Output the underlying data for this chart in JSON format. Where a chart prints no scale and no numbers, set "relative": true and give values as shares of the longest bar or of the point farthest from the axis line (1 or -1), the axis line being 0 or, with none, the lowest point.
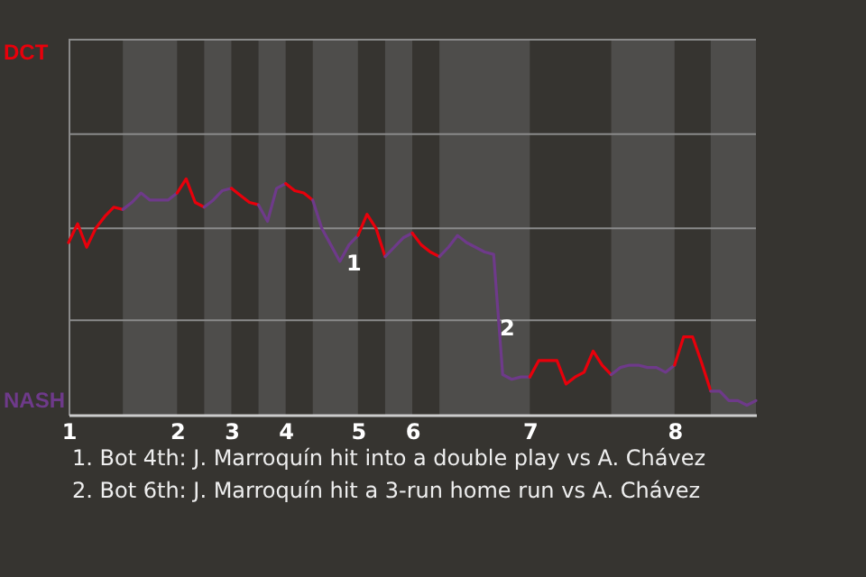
{
  "chart_data": {
    "type": "line",
    "relative": true,
    "ref_lines": [
      {
        "axis": "y",
        "value": 0.4,
        "color": "#8a8a8a"
      },
      {
        "axis": "y",
        "value": 0.79,
        "color": "#8a8a8a"
      },
      {
        "axis": "y",
        "value": 1.19,
        "color": "#8a8a8a"
      },
      {
        "axis": "y",
        "value": 1.59,
        "color": "#8a8a8a"
      }
    ],
    "categories": [
      "1",
      null,
      null,
      null,
      null,
      null,
      null,
      null,
      null,
      null,
      null,
      null,
      "2",
      null,
      null,
      null,
      null,
      null,
      "3",
      null,
      null,
      null,
      null,
      null,
      "4",
      null,
      null,
      null,
      null,
      null,
      null,
      null,
      "5",
      null,
      null,
      null,
      null,
      null,
      "6",
      null,
      null,
      null,
      null,
      null,
      null,
      null,
      null,
      null,
      null,
      null,
      null,
      "7",
      null,
      null,
      null,
      null,
      null,
      null,
      null,
      null,
      null,
      null,
      null,
      null,
      null,
      null,
      null,
      "8",
      null,
      null,
      null,
      null,
      null,
      null,
      null,
      null,
      null
    ],
    "series": [
      {
        "name": "DCT",
        "color": "#e8000b",
        "values": [
          0.73,
          0.81,
          0.71,
          0.79,
          0.84,
          0.88,
          0.87,
          null,
          null,
          null,
          null,
          null,
          null,
          null,
          null,
          null,
          null,
          null,
          null,
          null,
          null,
          null,
          null,
          null,
          null,
          null,
          null,
          null,
          null,
          null,
          null,
          null,
          null,
          null,
          null,
          null,
          null,
          null,
          null,
          null,
          null,
          null,
          null,
          null,
          null,
          null,
          null,
          null,
          null,
          null,
          null,
          null,
          null,
          null,
          null,
          null,
          null,
          null,
          null,
          null,
          null,
          null,
          null,
          null,
          null,
          null,
          null,
          null,
          null,
          null,
          null,
          null,
          null,
          null,
          null,
          null,
          null
        ]
      },
      {
        "name": "NASH",
        "color": "#6e3a8a",
        "values": [
          null,
          null,
          null,
          null,
          null,
          null,
          0.87,
          0.9,
          0.94,
          0.91,
          0.91,
          0.91,
          0.94,
          null,
          null,
          null,
          null,
          null,
          null,
          null,
          null,
          null,
          null,
          null,
          null,
          null,
          null,
          null,
          null,
          null,
          null,
          null,
          null,
          null,
          null,
          null,
          null,
          null,
          null,
          null,
          null,
          null,
          null,
          null,
          null,
          null,
          null,
          null,
          null,
          null,
          null,
          null,
          null,
          null,
          null,
          null,
          null,
          null,
          null,
          null,
          null,
          null,
          null,
          null,
          null,
          null,
          null,
          null,
          null,
          null,
          null,
          null,
          null,
          null,
          null,
          null,
          null
        ]
      },
      {
        "color": "#e8000b",
        "values": [
          null,
          null,
          null,
          null,
          null,
          null,
          null,
          null,
          null,
          null,
          null,
          null,
          0.94,
          1,
          0.9,
          0.88,
          null,
          null,
          null,
          null,
          null,
          null,
          null,
          null,
          null,
          null,
          null,
          null,
          null,
          null,
          null,
          null,
          null,
          null,
          null,
          null,
          null,
          null,
          null,
          null,
          null,
          null,
          null,
          null,
          null,
          null,
          null,
          null,
          null,
          null,
          null,
          null,
          null,
          null,
          null,
          null,
          null,
          null,
          null,
          null,
          null,
          null,
          null,
          null,
          null,
          null,
          null,
          null,
          null,
          null,
          null,
          null,
          null,
          null,
          null,
          null,
          null
        ]
      },
      {
        "color": "#6e3a8a",
        "values": [
          null,
          null,
          null,
          null,
          null,
          null,
          null,
          null,
          null,
          null,
          null,
          null,
          null,
          null,
          null,
          0.88,
          0.91,
          0.95,
          0.96,
          null,
          null,
          null,
          null,
          null,
          null,
          null,
          null,
          null,
          null,
          null,
          null,
          null,
          null,
          null,
          null,
          null,
          null,
          null,
          null,
          null,
          null,
          null,
          null,
          null,
          null,
          null,
          null,
          null,
          null,
          null,
          null,
          null,
          null,
          null,
          null,
          null,
          null,
          null,
          null,
          null,
          null,
          null,
          null,
          null,
          null,
          null,
          null,
          null,
          null,
          null,
          null,
          null,
          null,
          null,
          null,
          null,
          null
        ]
      },
      {
        "color": "#e8000b",
        "values": [
          null,
          null,
          null,
          null,
          null,
          null,
          null,
          null,
          null,
          null,
          null,
          null,
          null,
          null,
          null,
          null,
          null,
          null,
          0.96,
          0.93,
          0.9,
          0.89,
          null,
          null,
          null,
          null,
          null,
          null,
          null,
          null,
          null,
          null,
          null,
          null,
          null,
          null,
          null,
          null,
          null,
          null,
          null,
          null,
          null,
          null,
          null,
          null,
          null,
          null,
          null,
          null,
          null,
          null,
          null,
          null,
          null,
          null,
          null,
          null,
          null,
          null,
          null,
          null,
          null,
          null,
          null,
          null,
          null,
          null,
          null,
          null,
          null,
          null,
          null,
          null,
          null,
          null,
          null
        ]
      },
      {
        "color": "#6e3a8a",
        "values": [
          null,
          null,
          null,
          null,
          null,
          null,
          null,
          null,
          null,
          null,
          null,
          null,
          null,
          null,
          null,
          null,
          null,
          null,
          null,
          null,
          null,
          0.89,
          0.82,
          0.96,
          0.98,
          null,
          null,
          null,
          null,
          null,
          null,
          null,
          null,
          null,
          null,
          null,
          null,
          null,
          null,
          null,
          null,
          null,
          null,
          null,
          null,
          null,
          null,
          null,
          null,
          null,
          null,
          null,
          null,
          null,
          null,
          null,
          null,
          null,
          null,
          null,
          null,
          null,
          null,
          null,
          null,
          null,
          null,
          null,
          null,
          null,
          null,
          null,
          null,
          null,
          null,
          null,
          null
        ]
      },
      {
        "color": "#e8000b",
        "values": [
          null,
          null,
          null,
          null,
          null,
          null,
          null,
          null,
          null,
          null,
          null,
          null,
          null,
          null,
          null,
          null,
          null,
          null,
          null,
          null,
          null,
          null,
          null,
          null,
          0.98,
          0.95,
          0.94,
          0.91,
          null,
          null,
          null,
          null,
          null,
          null,
          null,
          null,
          null,
          null,
          null,
          null,
          null,
          null,
          null,
          null,
          null,
          null,
          null,
          null,
          null,
          null,
          null,
          null,
          null,
          null,
          null,
          null,
          null,
          null,
          null,
          null,
          null,
          null,
          null,
          null,
          null,
          null,
          null,
          null,
          null,
          null,
          null,
          null,
          null,
          null,
          null,
          null,
          null
        ]
      },
      {
        "color": "#6e3a8a",
        "values": [
          null,
          null,
          null,
          null,
          null,
          null,
          null,
          null,
          null,
          null,
          null,
          null,
          null,
          null,
          null,
          null,
          null,
          null,
          null,
          null,
          null,
          null,
          null,
          null,
          null,
          null,
          null,
          0.91,
          0.79,
          0.72,
          0.65,
          0.72,
          0.76,
          null,
          null,
          null,
          null,
          null,
          null,
          null,
          null,
          null,
          null,
          null,
          null,
          null,
          null,
          null,
          null,
          null,
          null,
          null,
          null,
          null,
          null,
          null,
          null,
          null,
          null,
          null,
          null,
          null,
          null,
          null,
          null,
          null,
          null,
          null,
          null,
          null,
          null,
          null,
          null,
          null,
          null,
          null,
          null
        ]
      },
      {
        "color": "#e8000b",
        "values": [
          null,
          null,
          null,
          null,
          null,
          null,
          null,
          null,
          null,
          null,
          null,
          null,
          null,
          null,
          null,
          null,
          null,
          null,
          null,
          null,
          null,
          null,
          null,
          null,
          null,
          null,
          null,
          null,
          null,
          null,
          null,
          null,
          0.76,
          0.85,
          0.79,
          0.67,
          null,
          null,
          null,
          null,
          null,
          null,
          null,
          null,
          null,
          null,
          null,
          null,
          null,
          null,
          null,
          null,
          null,
          null,
          null,
          null,
          null,
          null,
          null,
          null,
          null,
          null,
          null,
          null,
          null,
          null,
          null,
          null,
          null,
          null,
          null,
          null,
          null,
          null,
          null,
          null,
          null
        ]
      },
      {
        "color": "#6e3a8a",
        "values": [
          null,
          null,
          null,
          null,
          null,
          null,
          null,
          null,
          null,
          null,
          null,
          null,
          null,
          null,
          null,
          null,
          null,
          null,
          null,
          null,
          null,
          null,
          null,
          null,
          null,
          null,
          null,
          null,
          null,
          null,
          null,
          null,
          null,
          null,
          null,
          0.67,
          0.71,
          0.75,
          0.77,
          null,
          null,
          null,
          null,
          null,
          null,
          null,
          null,
          null,
          null,
          null,
          null,
          null,
          null,
          null,
          null,
          null,
          null,
          null,
          null,
          null,
          null,
          null,
          null,
          null,
          null,
          null,
          null,
          null,
          null,
          null,
          null,
          null,
          null,
          null,
          null,
          null,
          null
        ]
      },
      {
        "color": "#e8000b",
        "values": [
          null,
          null,
          null,
          null,
          null,
          null,
          null,
          null,
          null,
          null,
          null,
          null,
          null,
          null,
          null,
          null,
          null,
          null,
          null,
          null,
          null,
          null,
          null,
          null,
          null,
          null,
          null,
          null,
          null,
          null,
          null,
          null,
          null,
          null,
          null,
          null,
          null,
          null,
          0.77,
          0.72,
          0.69,
          0.67,
          null,
          null,
          null,
          null,
          null,
          null,
          null,
          null,
          null,
          null,
          null,
          null,
          null,
          null,
          null,
          null,
          null,
          null,
          null,
          null,
          null,
          null,
          null,
          null,
          null,
          null,
          null,
          null,
          null,
          null,
          null,
          null,
          null,
          null,
          null
        ]
      },
      {
        "color": "#6e3a8a",
        "values": [
          null,
          null,
          null,
          null,
          null,
          null,
          null,
          null,
          null,
          null,
          null,
          null,
          null,
          null,
          null,
          null,
          null,
          null,
          null,
          null,
          null,
          null,
          null,
          null,
          null,
          null,
          null,
          null,
          null,
          null,
          null,
          null,
          null,
          null,
          null,
          null,
          null,
          null,
          null,
          null,
          null,
          0.67,
          0.71,
          0.76,
          0.73,
          0.71,
          0.69,
          0.68,
          0.17,
          0.15,
          0.16,
          0.16,
          null,
          null,
          null,
          null,
          null,
          null,
          null,
          null,
          null,
          null,
          null,
          null,
          null,
          null,
          null,
          null,
          null,
          null,
          null,
          null,
          null,
          null,
          null,
          null,
          null
        ]
      },
      {
        "color": "#e8000b",
        "values": [
          null,
          null,
          null,
          null,
          null,
          null,
          null,
          null,
          null,
          null,
          null,
          null,
          null,
          null,
          null,
          null,
          null,
          null,
          null,
          null,
          null,
          null,
          null,
          null,
          null,
          null,
          null,
          null,
          null,
          null,
          null,
          null,
          null,
          null,
          null,
          null,
          null,
          null,
          null,
          null,
          null,
          null,
          null,
          null,
          null,
          null,
          null,
          null,
          null,
          null,
          null,
          0.16,
          0.23,
          0.23,
          0.23,
          0.13,
          0.16,
          0.18,
          0.27,
          0.21,
          0.17,
          null,
          null,
          null,
          null,
          null,
          null,
          null,
          null,
          null,
          null,
          null,
          null,
          null,
          null,
          null,
          null
        ]
      },
      {
        "color": "#6e3a8a",
        "values": [
          null,
          null,
          null,
          null,
          null,
          null,
          null,
          null,
          null,
          null,
          null,
          null,
          null,
          null,
          null,
          null,
          null,
          null,
          null,
          null,
          null,
          null,
          null,
          null,
          null,
          null,
          null,
          null,
          null,
          null,
          null,
          null,
          null,
          null,
          null,
          null,
          null,
          null,
          null,
          null,
          null,
          null,
          null,
          null,
          null,
          null,
          null,
          null,
          null,
          null,
          null,
          null,
          null,
          null,
          null,
          null,
          null,
          null,
          null,
          null,
          0.17,
          0.2,
          0.21,
          0.21,
          0.2,
          0.2,
          0.18,
          0.21,
          null,
          null,
          null,
          null,
          null,
          null,
          null,
          null,
          null
        ]
      },
      {
        "color": "#e8000b",
        "values": [
          null,
          null,
          null,
          null,
          null,
          null,
          null,
          null,
          null,
          null,
          null,
          null,
          null,
          null,
          null,
          null,
          null,
          null,
          null,
          null,
          null,
          null,
          null,
          null,
          null,
          null,
          null,
          null,
          null,
          null,
          null,
          null,
          null,
          null,
          null,
          null,
          null,
          null,
          null,
          null,
          null,
          null,
          null,
          null,
          null,
          null,
          null,
          null,
          null,
          null,
          null,
          null,
          null,
          null,
          null,
          null,
          null,
          null,
          null,
          null,
          null,
          null,
          null,
          null,
          null,
          null,
          null,
          0.21,
          0.33,
          0.33,
          0.22,
          0.1,
          null,
          null,
          null,
          null,
          null
        ]
      },
      {
        "color": "#6e3a8a",
        "values": [
          null,
          null,
          null,
          null,
          null,
          null,
          null,
          null,
          null,
          null,
          null,
          null,
          null,
          null,
          null,
          null,
          null,
          null,
          null,
          null,
          null,
          null,
          null,
          null,
          null,
          null,
          null,
          null,
          null,
          null,
          null,
          null,
          null,
          null,
          null,
          null,
          null,
          null,
          null,
          null,
          null,
          null,
          null,
          null,
          null,
          null,
          null,
          null,
          null,
          null,
          null,
          null,
          null,
          null,
          null,
          null,
          null,
          null,
          null,
          null,
          null,
          null,
          null,
          null,
          null,
          null,
          null,
          null,
          null,
          null,
          null,
          0.1,
          0.1,
          0.06,
          0.06,
          0.04,
          0.06
        ]
      }
    ],
    "annotations": [
      "1",
      "2",
      "1. Bot 4th: J. Marroquín hit into a double play vs A. Chávez",
      "2. Bot 6th: J. Marroquín hit a 3-run home run vs A. Chávez"
    ]
  }
}
